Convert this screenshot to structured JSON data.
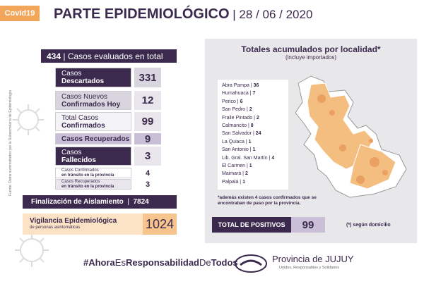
{
  "header": {
    "tag": "Covid19",
    "title": "PARTE EPIDEMIOLÓGICO",
    "date": "28 / 06 / 2020"
  },
  "source_note": "Fuente: Datos suministrados por la Subsecretaría de Epidemiología",
  "summary": {
    "total_value": 434,
    "total_label": "Casos evaluados en total",
    "rows": [
      {
        "lines": [
          "Casos",
          "Descartados"
        ],
        "value": 331
      },
      {
        "lines": [
          "Casos Nuevos",
          "Confirmados Hoy"
        ],
        "value": 12
      },
      {
        "lines": [
          "Total Casos",
          "Confirmados"
        ],
        "value": 99
      },
      {
        "lines": [
          "Casos Recuperados"
        ],
        "value": 9
      },
      {
        "lines": [
          "Casos",
          "Fallecidos"
        ],
        "value": 3
      },
      {
        "lines": [
          "Casos Confirmados",
          "en tránsito en la provincia"
        ],
        "value": 4
      },
      {
        "lines": [
          "Casos Recuperados",
          "en tránsito en la provincia"
        ],
        "value": 3
      }
    ]
  },
  "isolation": {
    "label": "Finalización de Aislamiento",
    "value": 7824
  },
  "surveillance": {
    "title": "Vigilancia Epidemiológica",
    "subtitle": "de personas asintomáticas",
    "value": 1024
  },
  "localities_panel": {
    "title": "Totales acumulados por localidad*",
    "subtitle": "(incluye importados)",
    "localities": [
      {
        "name": "Abra Pampa",
        "value": 36
      },
      {
        "name": "Humahuaca",
        "value": 7
      },
      {
        "name": "Perico",
        "value": 6
      },
      {
        "name": "San Pedro",
        "value": 2
      },
      {
        "name": "Fraile Pintado",
        "value": 2
      },
      {
        "name": "Calmancito",
        "value": 8
      },
      {
        "name": "San Salvador",
        "value": 24
      },
      {
        "name": "La Quiaca",
        "value": 1
      },
      {
        "name": "San Antonio",
        "value": 1
      },
      {
        "name": "Lib. Gral. San Martín",
        "value": 4
      },
      {
        "name": "El Carmen",
        "value": 1
      },
      {
        "name": "Maimará",
        "value": 2
      },
      {
        "name": "Palpalá",
        "value": 1
      }
    ],
    "note": [
      "*además existen 4 casos confirmados que se",
      "encontraban de paso por la provincia."
    ],
    "total_label": "TOTAL DE POSITIVOS",
    "total_value": 99,
    "footnote": "(*) según domicilio"
  },
  "footer": {
    "hashtag": [
      "#Ahora",
      "Es",
      "Responsabilidad",
      "De",
      "Todos"
    ],
    "org": "Provincia de JUJUY",
    "motto": "Unidos, Responsables y Solidarios"
  }
}
